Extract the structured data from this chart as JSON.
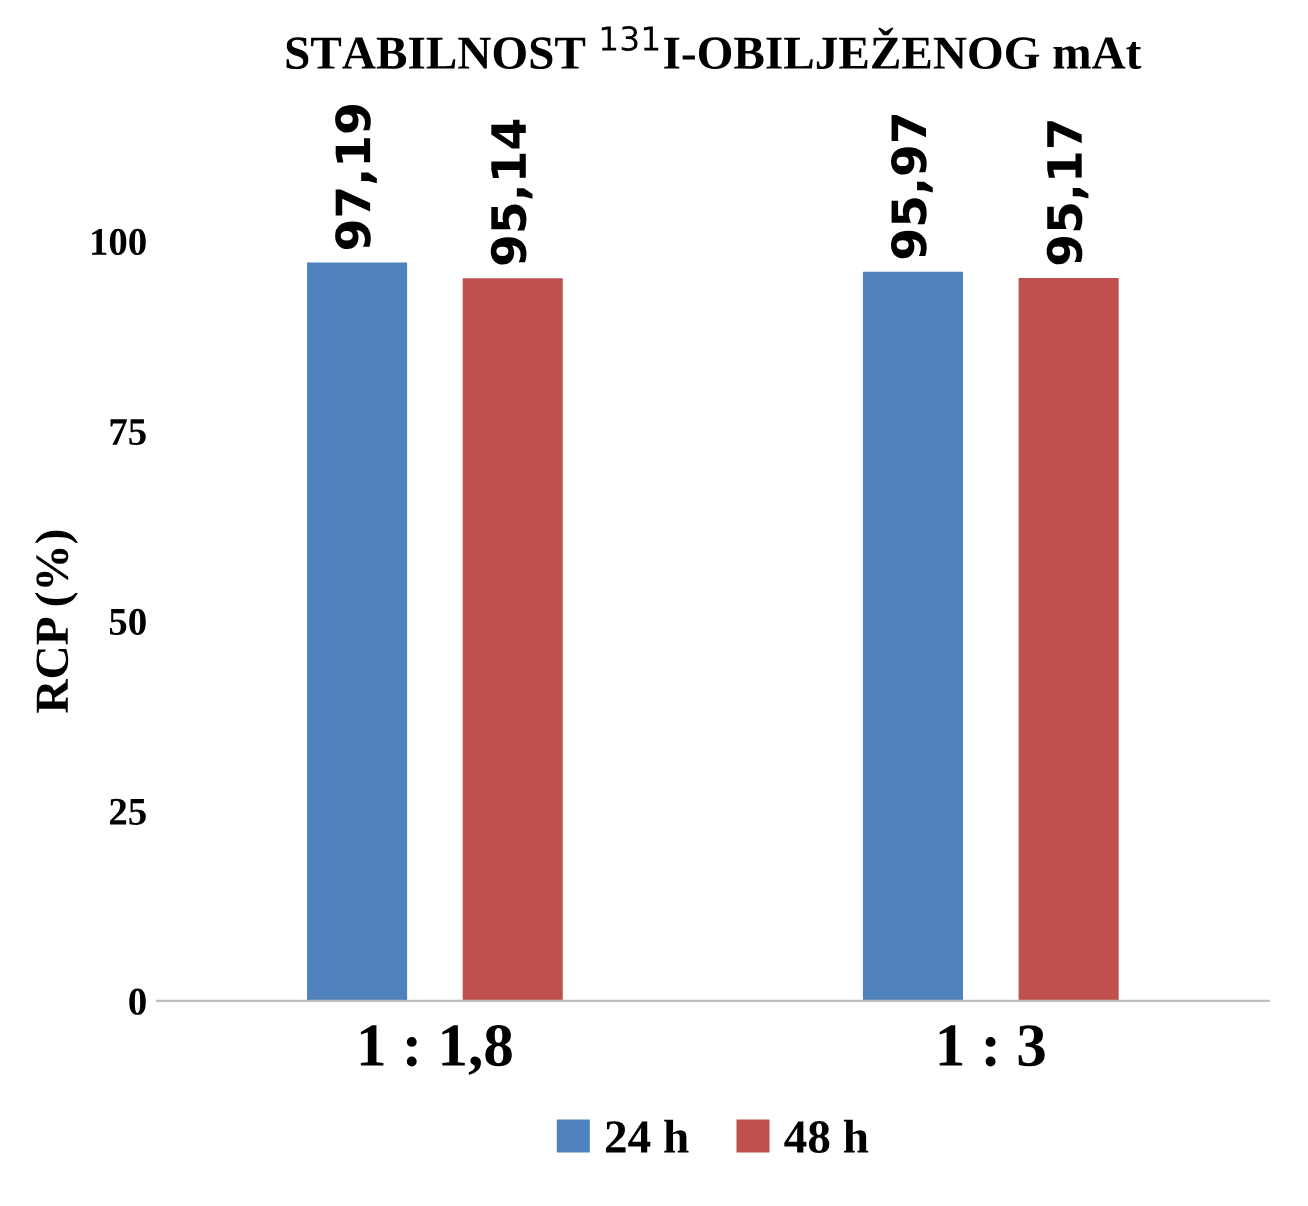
{
  "chart_data": {
    "type": "bar",
    "title": "STABILNOST $^{131}$I-OBILJEŽENOG mAt",
    "ylabel": "RCP (%)",
    "categories": [
      "1 : 1,8",
      "1 : 3"
    ],
    "series": [
      {
        "name": "24 h",
        "color": "#4f81bd",
        "values": [
          97.19,
          95.97
        ],
        "value_labels": [
          "97,19",
          "95,97"
        ]
      },
      {
        "name": "48 h",
        "color": "#c0504d",
        "values": [
          95.14,
          95.17
        ],
        "value_labels": [
          "95,14",
          "95,17"
        ]
      }
    ],
    "ylim": [
      0,
      100
    ],
    "yticks": [
      0,
      25,
      50,
      75,
      100
    ],
    "grid": false,
    "legend": "bottom"
  }
}
